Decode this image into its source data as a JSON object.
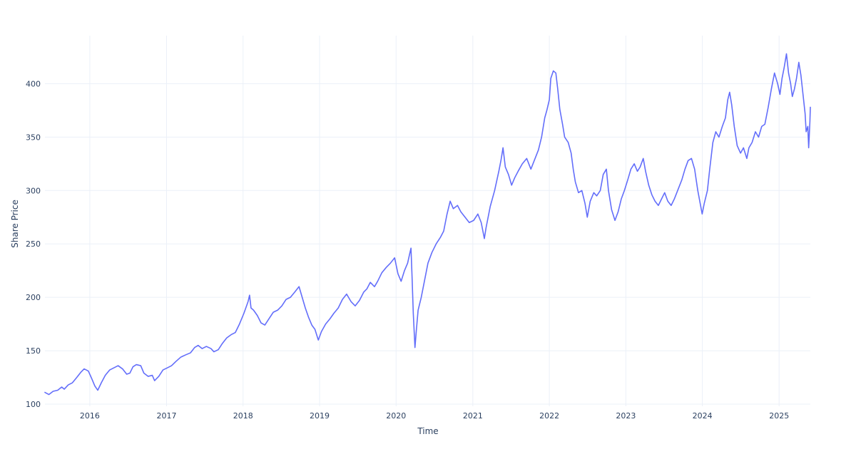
{
  "chart_data": {
    "type": "line",
    "xlabel": "Time",
    "ylabel": "Share Price",
    "xlim": [
      "2015-06-01",
      "2025-05-30"
    ],
    "ylim": [
      98,
      445
    ],
    "x_ticks": [
      "2016",
      "2017",
      "2018",
      "2019",
      "2020",
      "2021",
      "2022",
      "2023",
      "2024",
      "2025"
    ],
    "y_ticks": [
      100,
      150,
      200,
      250,
      300,
      350,
      400
    ],
    "grid": true,
    "line_color": "#636efa",
    "series": [
      {
        "points": [
          [
            "2015-06-01",
            111
          ],
          [
            "2015-06-20",
            109
          ],
          [
            "2015-07-10",
            112
          ],
          [
            "2015-08-01",
            113
          ],
          [
            "2015-08-20",
            116
          ],
          [
            "2015-09-01",
            114
          ],
          [
            "2015-09-20",
            118
          ],
          [
            "2015-10-10",
            120
          ],
          [
            "2015-10-31",
            125
          ],
          [
            "2015-11-20",
            130
          ],
          [
            "2015-12-05",
            133
          ],
          [
            "2015-12-25",
            131
          ],
          [
            "2016-01-10",
            124
          ],
          [
            "2016-01-25",
            117
          ],
          [
            "2016-02-08",
            113
          ],
          [
            "2016-02-25",
            120
          ],
          [
            "2016-03-15",
            127
          ],
          [
            "2016-04-05",
            132
          ],
          [
            "2016-04-25",
            134
          ],
          [
            "2016-05-15",
            136
          ],
          [
            "2016-06-05",
            133
          ],
          [
            "2016-06-25",
            128
          ],
          [
            "2016-07-10",
            129
          ],
          [
            "2016-07-25",
            135
          ],
          [
            "2016-08-10",
            137
          ],
          [
            "2016-08-31",
            136
          ],
          [
            "2016-09-15",
            129
          ],
          [
            "2016-10-05",
            126
          ],
          [
            "2016-10-25",
            127
          ],
          [
            "2016-11-05",
            122
          ],
          [
            "2016-11-25",
            126
          ],
          [
            "2016-12-15",
            132
          ],
          [
            "2017-01-05",
            134
          ],
          [
            "2017-01-25",
            136
          ],
          [
            "2017-02-15",
            140
          ],
          [
            "2017-03-10",
            144
          ],
          [
            "2017-04-01",
            146
          ],
          [
            "2017-04-25",
            148
          ],
          [
            "2017-05-15",
            153
          ],
          [
            "2017-06-01",
            155
          ],
          [
            "2017-06-20",
            152
          ],
          [
            "2017-07-10",
            154
          ],
          [
            "2017-08-01",
            152
          ],
          [
            "2017-08-15",
            149
          ],
          [
            "2017-09-05",
            151
          ],
          [
            "2017-09-25",
            157
          ],
          [
            "2017-10-15",
            162
          ],
          [
            "2017-11-05",
            165
          ],
          [
            "2017-11-25",
            167
          ],
          [
            "2017-12-15",
            175
          ],
          [
            "2018-01-05",
            185
          ],
          [
            "2018-01-25",
            196
          ],
          [
            "2018-02-01",
            202
          ],
          [
            "2018-02-08",
            190
          ],
          [
            "2018-02-20",
            188
          ],
          [
            "2018-03-10",
            183
          ],
          [
            "2018-03-28",
            176
          ],
          [
            "2018-04-15",
            174
          ],
          [
            "2018-05-05",
            180
          ],
          [
            "2018-05-25",
            186
          ],
          [
            "2018-06-15",
            188
          ],
          [
            "2018-07-05",
            192
          ],
          [
            "2018-07-25",
            198
          ],
          [
            "2018-08-15",
            200
          ],
          [
            "2018-09-05",
            205
          ],
          [
            "2018-09-25",
            210
          ],
          [
            "2018-10-10",
            200
          ],
          [
            "2018-10-25",
            190
          ],
          [
            "2018-11-10",
            181
          ],
          [
            "2018-11-25",
            174
          ],
          [
            "2018-12-10",
            170
          ],
          [
            "2018-12-26",
            160
          ],
          [
            "2019-01-10",
            168
          ],
          [
            "2019-01-30",
            175
          ],
          [
            "2019-02-20",
            180
          ],
          [
            "2019-03-10",
            185
          ],
          [
            "2019-03-31",
            190
          ],
          [
            "2019-04-20",
            198
          ],
          [
            "2019-05-10",
            203
          ],
          [
            "2019-05-31",
            196
          ],
          [
            "2019-06-20",
            192
          ],
          [
            "2019-07-10",
            197
          ],
          [
            "2019-07-31",
            205
          ],
          [
            "2019-08-15",
            208
          ],
          [
            "2019-08-31",
            214
          ],
          [
            "2019-09-20",
            210
          ],
          [
            "2019-10-05",
            215
          ],
          [
            "2019-10-25",
            223
          ],
          [
            "2019-11-15",
            228
          ],
          [
            "2019-12-05",
            232
          ],
          [
            "2019-12-25",
            237
          ],
          [
            "2020-01-10",
            222
          ],
          [
            "2020-01-25",
            215
          ],
          [
            "2020-02-10",
            225
          ],
          [
            "2020-02-25",
            232
          ],
          [
            "2020-03-05",
            240
          ],
          [
            "2020-03-12",
            246
          ],
          [
            "2020-03-17",
            220
          ],
          [
            "2020-03-23",
            185
          ],
          [
            "2020-03-31",
            153
          ],
          [
            "2020-04-07",
            170
          ],
          [
            "2020-04-15",
            188
          ],
          [
            "2020-04-30",
            200
          ],
          [
            "2020-05-15",
            215
          ],
          [
            "2020-06-01",
            232
          ],
          [
            "2020-06-20",
            242
          ],
          [
            "2020-07-10",
            250
          ],
          [
            "2020-07-30",
            256
          ],
          [
            "2020-08-15",
            262
          ],
          [
            "2020-08-31",
            278
          ],
          [
            "2020-09-15",
            290
          ],
          [
            "2020-09-30",
            283
          ],
          [
            "2020-10-20",
            286
          ],
          [
            "2020-11-05",
            280
          ],
          [
            "2020-11-25",
            275
          ],
          [
            "2020-12-15",
            270
          ],
          [
            "2021-01-05",
            272
          ],
          [
            "2021-01-25",
            278
          ],
          [
            "2021-02-10",
            270
          ],
          [
            "2021-02-25",
            255
          ],
          [
            "2021-03-05",
            265
          ],
          [
            "2021-03-25",
            285
          ],
          [
            "2021-04-15",
            300
          ],
          [
            "2021-05-05",
            318
          ],
          [
            "2021-05-15",
            328
          ],
          [
            "2021-05-25",
            340
          ],
          [
            "2021-06-05",
            322
          ],
          [
            "2021-06-20",
            315
          ],
          [
            "2021-07-05",
            305
          ],
          [
            "2021-07-20",
            312
          ],
          [
            "2021-08-05",
            318
          ],
          [
            "2021-08-25",
            325
          ],
          [
            "2021-09-15",
            330
          ],
          [
            "2021-10-05",
            320
          ],
          [
            "2021-10-25",
            330
          ],
          [
            "2021-11-10",
            338
          ],
          [
            "2021-11-25",
            350
          ],
          [
            "2021-12-10",
            368
          ],
          [
            "2021-12-20",
            375
          ],
          [
            "2022-01-01",
            385
          ],
          [
            "2022-01-08",
            405
          ],
          [
            "2022-01-20",
            412
          ],
          [
            "2022-02-01",
            410
          ],
          [
            "2022-02-10",
            395
          ],
          [
            "2022-02-20",
            376
          ],
          [
            "2022-03-05",
            362
          ],
          [
            "2022-03-15",
            350
          ],
          [
            "2022-04-01",
            345
          ],
          [
            "2022-04-15",
            335
          ],
          [
            "2022-04-25",
            320
          ],
          [
            "2022-05-05",
            308
          ],
          [
            "2022-05-20",
            298
          ],
          [
            "2022-06-05",
            300
          ],
          [
            "2022-06-20",
            288
          ],
          [
            "2022-07-01",
            275
          ],
          [
            "2022-07-15",
            290
          ],
          [
            "2022-08-01",
            298
          ],
          [
            "2022-08-15",
            295
          ],
          [
            "2022-09-01",
            300
          ],
          [
            "2022-09-15",
            315
          ],
          [
            "2022-09-30",
            320
          ],
          [
            "2022-10-10",
            300
          ],
          [
            "2022-10-25",
            282
          ],
          [
            "2022-11-10",
            272
          ],
          [
            "2022-11-25",
            280
          ],
          [
            "2022-12-10",
            292
          ],
          [
            "2022-12-25",
            300
          ],
          [
            "2023-01-10",
            310
          ],
          [
            "2023-01-25",
            320
          ],
          [
            "2023-02-10",
            325
          ],
          [
            "2023-02-25",
            318
          ],
          [
            "2023-03-10",
            322
          ],
          [
            "2023-03-25",
            330
          ],
          [
            "2023-04-05",
            318
          ],
          [
            "2023-04-20",
            305
          ],
          [
            "2023-05-05",
            296
          ],
          [
            "2023-05-20",
            290
          ],
          [
            "2023-06-05",
            286
          ],
          [
            "2023-06-20",
            292
          ],
          [
            "2023-07-05",
            298
          ],
          [
            "2023-07-20",
            290
          ],
          [
            "2023-08-05",
            286
          ],
          [
            "2023-08-20",
            292
          ],
          [
            "2023-09-05",
            300
          ],
          [
            "2023-09-25",
            310
          ],
          [
            "2023-10-10",
            320
          ],
          [
            "2023-10-25",
            328
          ],
          [
            "2023-11-10",
            330
          ],
          [
            "2023-11-25",
            320
          ],
          [
            "2023-12-10",
            300
          ],
          [
            "2023-12-31",
            278
          ],
          [
            "2024-01-10",
            288
          ],
          [
            "2024-01-25",
            300
          ],
          [
            "2024-02-05",
            320
          ],
          [
            "2024-02-20",
            345
          ],
          [
            "2024-03-05",
            355
          ],
          [
            "2024-03-20",
            350
          ],
          [
            "2024-04-05",
            360
          ],
          [
            "2024-04-20",
            368
          ],
          [
            "2024-05-01",
            385
          ],
          [
            "2024-05-10",
            392
          ],
          [
            "2024-05-20",
            380
          ],
          [
            "2024-06-01",
            360
          ],
          [
            "2024-06-15",
            342
          ],
          [
            "2024-07-01",
            335
          ],
          [
            "2024-07-15",
            340
          ],
          [
            "2024-07-31",
            330
          ],
          [
            "2024-08-10",
            340
          ],
          [
            "2024-08-25",
            345
          ],
          [
            "2024-09-10",
            355
          ],
          [
            "2024-09-25",
            350
          ],
          [
            "2024-10-10",
            360
          ],
          [
            "2024-10-25",
            362
          ],
          [
            "2024-11-10",
            378
          ],
          [
            "2024-11-25",
            395
          ],
          [
            "2024-12-10",
            410
          ],
          [
            "2024-12-25",
            400
          ],
          [
            "2025-01-05",
            390
          ],
          [
            "2025-01-15",
            405
          ],
          [
            "2025-01-25",
            415
          ],
          [
            "2025-02-05",
            428
          ],
          [
            "2025-02-15",
            410
          ],
          [
            "2025-02-25",
            400
          ],
          [
            "2025-03-05",
            388
          ],
          [
            "2025-03-15",
            395
          ],
          [
            "2025-03-25",
            405
          ],
          [
            "2025-04-05",
            420
          ],
          [
            "2025-04-15",
            408
          ],
          [
            "2025-04-25",
            390
          ],
          [
            "2025-05-05",
            372
          ],
          [
            "2025-05-10",
            355
          ],
          [
            "2025-05-18",
            360
          ],
          [
            "2025-05-22",
            340
          ],
          [
            "2025-05-25",
            352
          ],
          [
            "2025-05-28",
            365
          ],
          [
            "2025-05-30",
            378
          ]
        ]
      }
    ]
  }
}
